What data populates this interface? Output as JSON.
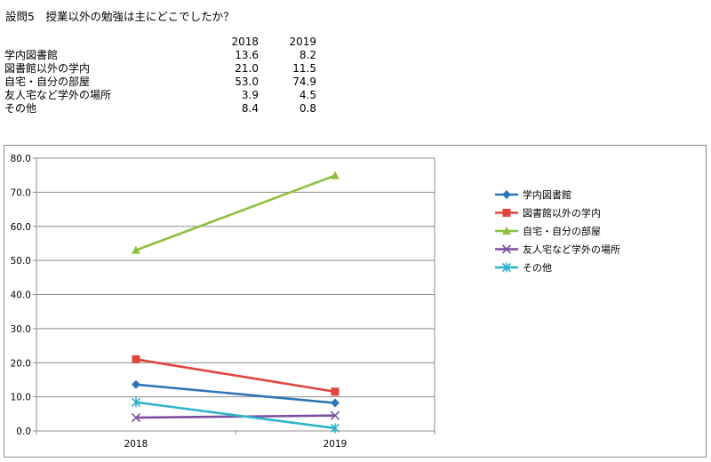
{
  "question": "設問5　授業以外の勉強は主にどこでしたか？",
  "table": {
    "years": [
      "2018",
      "2019"
    ],
    "rows": [
      {
        "label": "学内図書館",
        "values": [
          "13.6",
          "8.2"
        ]
      },
      {
        "label": "図書館以外の学内",
        "values": [
          "21.0",
          "11.5"
        ]
      },
      {
        "label": "自宅・自分の部屋",
        "values": [
          "53.0",
          "74.9"
        ]
      },
      {
        "label": "友人宅など学外の場所",
        "values": [
          "3.9",
          "4.5"
        ]
      },
      {
        "label": "その他",
        "values": [
          "8.4",
          "0.8"
        ]
      }
    ]
  },
  "chart_data": {
    "type": "line",
    "title": "",
    "xlabel": "",
    "ylabel": "",
    "categories": [
      "2018",
      "2019"
    ],
    "ylim": [
      0,
      80
    ],
    "yticks": [
      "0.0",
      "10.0",
      "20.0",
      "30.0",
      "40.0",
      "50.0",
      "60.0",
      "70.0",
      "80.0"
    ],
    "grid": true,
    "legend": "right",
    "series": [
      {
        "name": "学内図書館",
        "values": [
          13.6,
          8.2
        ],
        "color": "#2e75b6",
        "marker": "diamond"
      },
      {
        "name": "図書館以外の学内",
        "values": [
          21.0,
          11.5
        ],
        "color": "#e0443c",
        "marker": "square"
      },
      {
        "name": "自宅・自分の部屋",
        "values": [
          53.0,
          74.9
        ],
        "color": "#8fbe3f",
        "marker": "triangle"
      },
      {
        "name": "友人宅など学外の場所",
        "values": [
          3.9,
          4.5
        ],
        "color": "#7b4fa0",
        "marker": "x"
      },
      {
        "name": "その他",
        "values": [
          8.4,
          0.8
        ],
        "color": "#2fb3c9",
        "marker": "star"
      }
    ]
  }
}
